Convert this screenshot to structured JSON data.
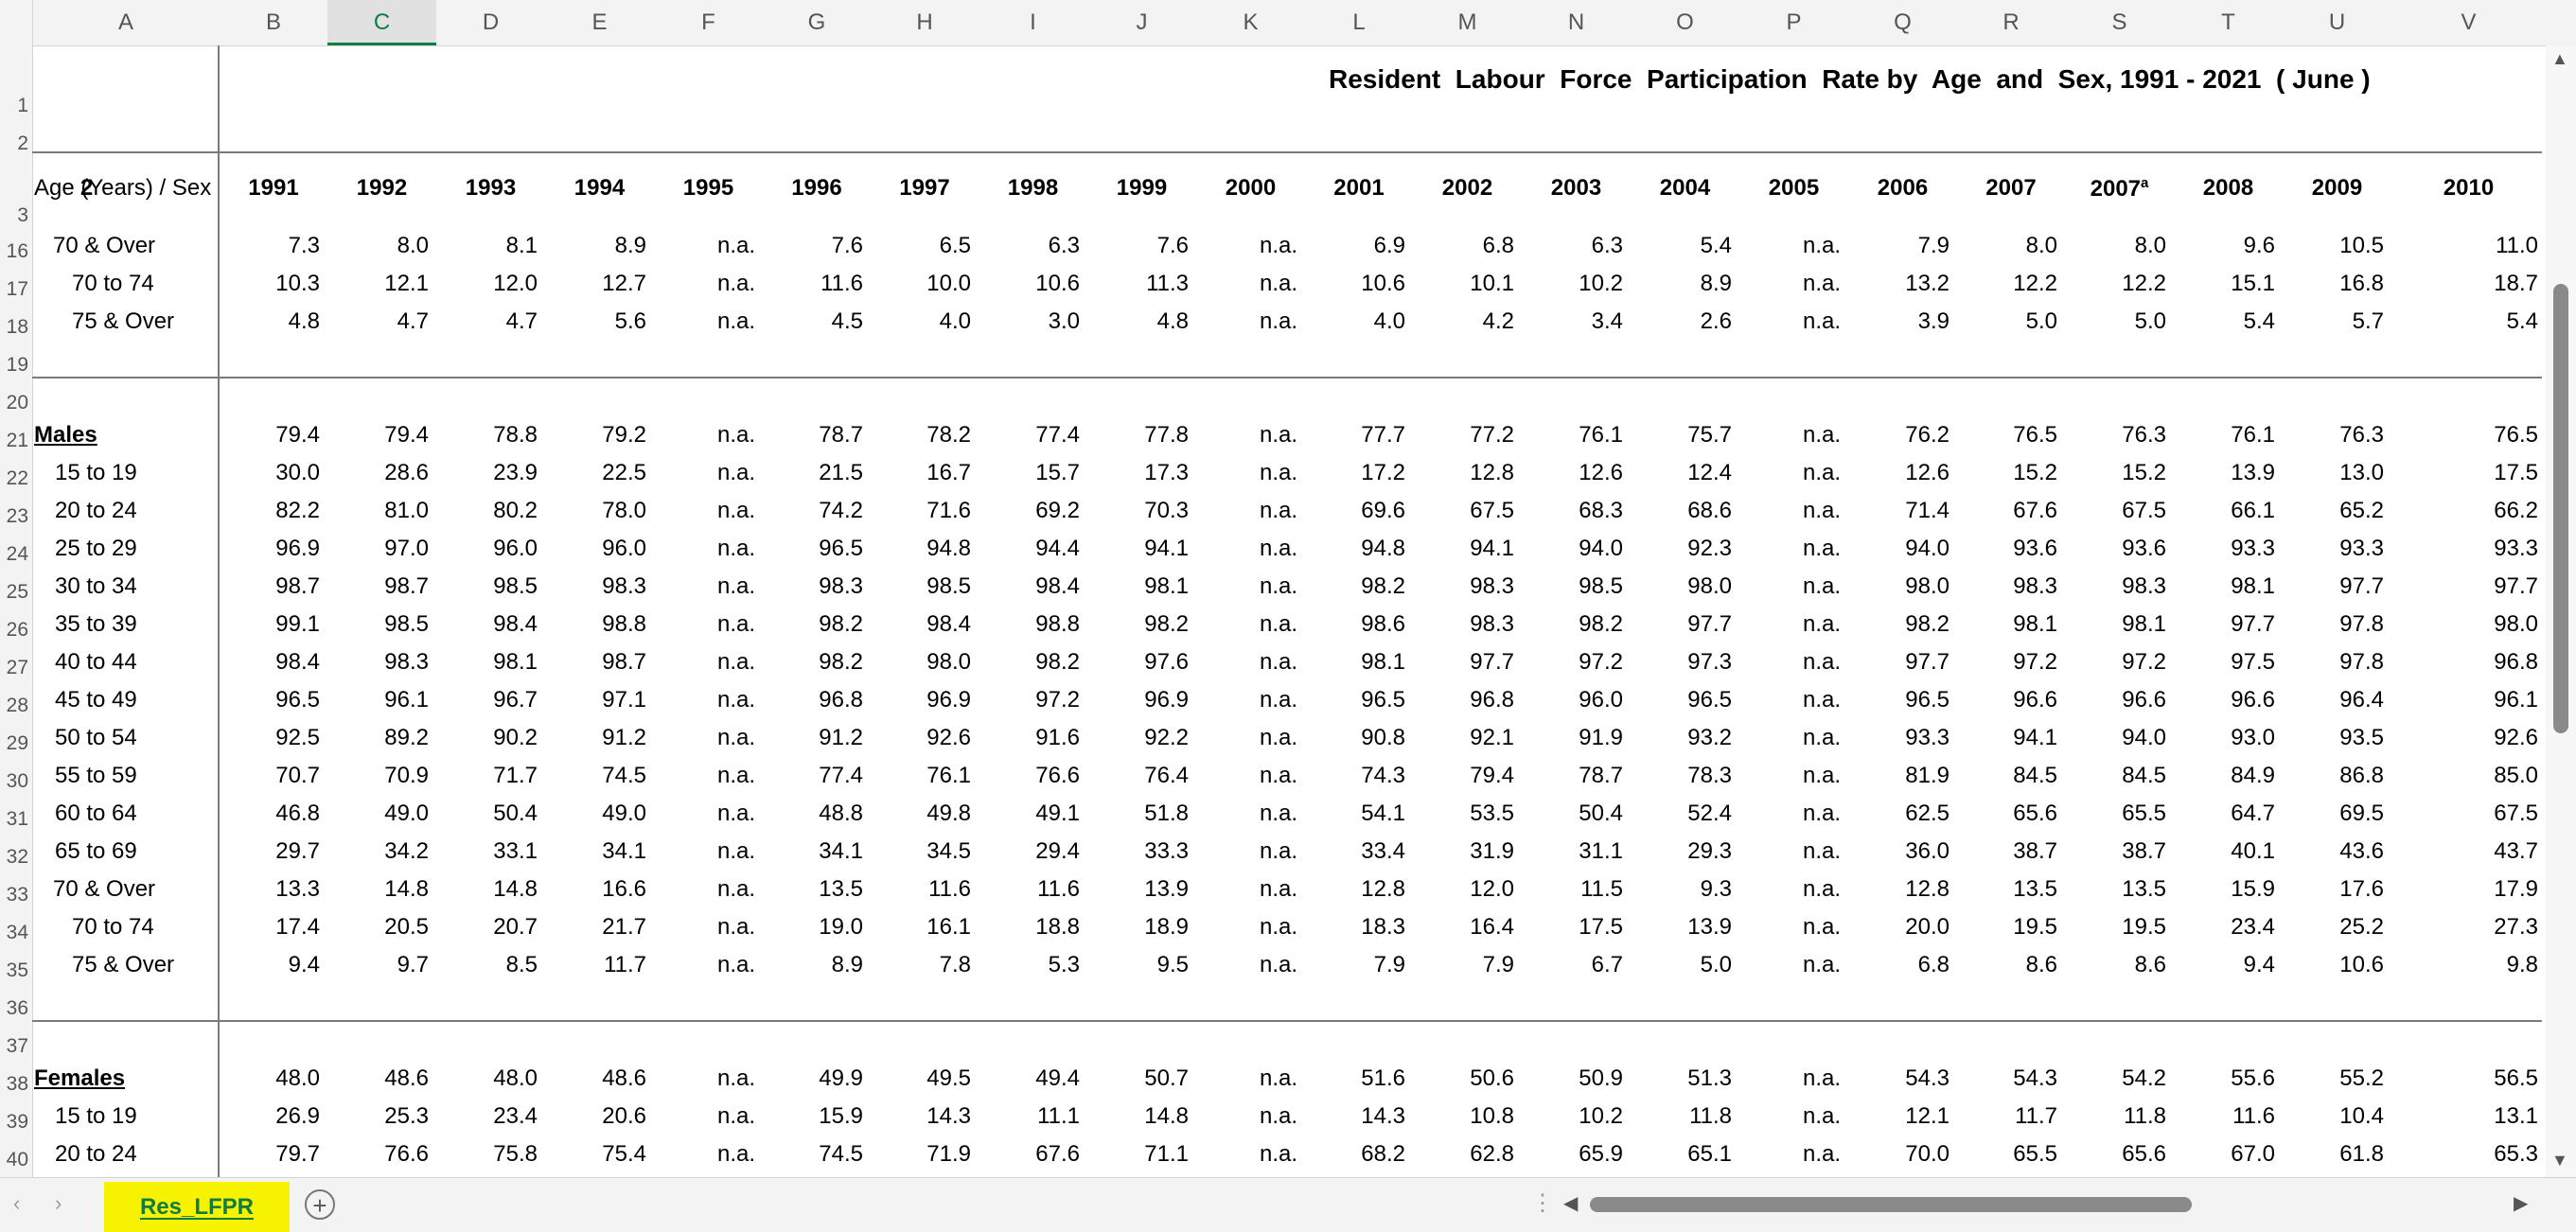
{
  "sheet": {
    "title": "Resident  Labour  Force  Participation  Rate by  Age  and  Sex, 1991 - 2021  ( June )",
    "header_label": "Age (Years) / Sex",
    "column_letters": [
      "A",
      "B",
      "C",
      "D",
      "E",
      "F",
      "G",
      "H",
      "I",
      "J",
      "K",
      "L",
      "M",
      "N",
      "O",
      "P",
      "Q",
      "R",
      "S",
      "T",
      "U",
      "V"
    ],
    "selected_column": "C",
    "years": [
      "1991",
      "1992",
      "1993",
      "1994",
      "1995",
      "1996",
      "1997",
      "1998",
      "1999",
      "2000",
      "2001",
      "2002",
      "2003",
      "2004",
      "2005",
      "2006",
      "2007",
      "2007",
      "2008",
      "2009",
      "2010",
      "2"
    ],
    "year_superscript": {
      "index": 17,
      "text": "a"
    },
    "row_numbers": [
      "1",
      "2",
      "3",
      "16",
      "17",
      "18",
      "19",
      "20",
      "21",
      "22",
      "23",
      "24",
      "25",
      "26",
      "27",
      "28",
      "29",
      "30",
      "31",
      "32",
      "33",
      "34",
      "35",
      "36",
      "37",
      "38",
      "39",
      "40"
    ],
    "rows": [
      {
        "row": "16",
        "label": "70 & Over",
        "values": [
          "7.3",
          "8.0",
          "8.1",
          "8.9",
          "n.a.",
          "7.6",
          "6.5",
          "6.3",
          "7.6",
          "n.a.",
          "6.9",
          "6.8",
          "6.3",
          "5.4",
          "n.a.",
          "7.9",
          "8.0",
          "8.0",
          "9.6",
          "10.5",
          "11.0"
        ]
      },
      {
        "row": "17",
        "label": "70 to 74",
        "values": [
          "10.3",
          "12.1",
          "12.0",
          "12.7",
          "n.a.",
          "11.6",
          "10.0",
          "10.6",
          "11.3",
          "n.a.",
          "10.6",
          "10.1",
          "10.2",
          "8.9",
          "n.a.",
          "13.2",
          "12.2",
          "12.2",
          "15.1",
          "16.8",
          "18.7"
        ]
      },
      {
        "row": "18",
        "label": "75 & Over",
        "values": [
          "4.8",
          "4.7",
          "4.7",
          "5.6",
          "n.a.",
          "4.5",
          "4.0",
          "3.0",
          "4.8",
          "n.a.",
          "4.0",
          "4.2",
          "3.4",
          "2.6",
          "n.a.",
          "3.9",
          "5.0",
          "5.0",
          "5.4",
          "5.7",
          "5.4"
        ]
      },
      {
        "row": "21",
        "label": "Males",
        "values": [
          "79.4",
          "79.4",
          "78.8",
          "79.2",
          "n.a.",
          "78.7",
          "78.2",
          "77.4",
          "77.8",
          "n.a.",
          "77.7",
          "77.2",
          "76.1",
          "75.7",
          "n.a.",
          "76.2",
          "76.5",
          "76.3",
          "76.1",
          "76.3",
          "76.5"
        ]
      },
      {
        "row": "22",
        "label": "15 to 19",
        "values": [
          "30.0",
          "28.6",
          "23.9",
          "22.5",
          "n.a.",
          "21.5",
          "16.7",
          "15.7",
          "17.3",
          "n.a.",
          "17.2",
          "12.8",
          "12.6",
          "12.4",
          "n.a.",
          "12.6",
          "15.2",
          "15.2",
          "13.9",
          "13.0",
          "17.5"
        ]
      },
      {
        "row": "23",
        "label": "20 to 24",
        "values": [
          "82.2",
          "81.0",
          "80.2",
          "78.0",
          "n.a.",
          "74.2",
          "71.6",
          "69.2",
          "70.3",
          "n.a.",
          "69.6",
          "67.5",
          "68.3",
          "68.6",
          "n.a.",
          "71.4",
          "67.6",
          "67.5",
          "66.1",
          "65.2",
          "66.2"
        ]
      },
      {
        "row": "24",
        "label": "25 to 29",
        "values": [
          "96.9",
          "97.0",
          "96.0",
          "96.0",
          "n.a.",
          "96.5",
          "94.8",
          "94.4",
          "94.1",
          "n.a.",
          "94.8",
          "94.1",
          "94.0",
          "92.3",
          "n.a.",
          "94.0",
          "93.6",
          "93.6",
          "93.3",
          "93.3",
          "93.3"
        ]
      },
      {
        "row": "25",
        "label": "30 to 34",
        "values": [
          "98.7",
          "98.7",
          "98.5",
          "98.3",
          "n.a.",
          "98.3",
          "98.5",
          "98.4",
          "98.1",
          "n.a.",
          "98.2",
          "98.3",
          "98.5",
          "98.0",
          "n.a.",
          "98.0",
          "98.3",
          "98.3",
          "98.1",
          "97.7",
          "97.7"
        ]
      },
      {
        "row": "26",
        "label": "35 to 39",
        "values": [
          "99.1",
          "98.5",
          "98.4",
          "98.8",
          "n.a.",
          "98.2",
          "98.4",
          "98.8",
          "98.2",
          "n.a.",
          "98.6",
          "98.3",
          "98.2",
          "97.7",
          "n.a.",
          "98.2",
          "98.1",
          "98.1",
          "97.7",
          "97.8",
          "98.0"
        ]
      },
      {
        "row": "27",
        "label": "40 to 44",
        "values": [
          "98.4",
          "98.3",
          "98.1",
          "98.7",
          "n.a.",
          "98.2",
          "98.0",
          "98.2",
          "97.6",
          "n.a.",
          "98.1",
          "97.7",
          "97.2",
          "97.3",
          "n.a.",
          "97.7",
          "97.2",
          "97.2",
          "97.5",
          "97.8",
          "96.8"
        ]
      },
      {
        "row": "28",
        "label": "45 to 49",
        "values": [
          "96.5",
          "96.1",
          "96.7",
          "97.1",
          "n.a.",
          "96.8",
          "96.9",
          "97.2",
          "96.9",
          "n.a.",
          "96.5",
          "96.8",
          "96.0",
          "96.5",
          "n.a.",
          "96.5",
          "96.6",
          "96.6",
          "96.6",
          "96.4",
          "96.1"
        ]
      },
      {
        "row": "29",
        "label": "50 to 54",
        "values": [
          "92.5",
          "89.2",
          "90.2",
          "91.2",
          "n.a.",
          "91.2",
          "92.6",
          "91.6",
          "92.2",
          "n.a.",
          "90.8",
          "92.1",
          "91.9",
          "93.2",
          "n.a.",
          "93.3",
          "94.1",
          "94.0",
          "93.0",
          "93.5",
          "92.6"
        ]
      },
      {
        "row": "30",
        "label": "55 to 59",
        "values": [
          "70.7",
          "70.9",
          "71.7",
          "74.5",
          "n.a.",
          "77.4",
          "76.1",
          "76.6",
          "76.4",
          "n.a.",
          "74.3",
          "79.4",
          "78.7",
          "78.3",
          "n.a.",
          "81.9",
          "84.5",
          "84.5",
          "84.9",
          "86.8",
          "85.0"
        ]
      },
      {
        "row": "31",
        "label": "60 to 64",
        "values": [
          "46.8",
          "49.0",
          "50.4",
          "49.0",
          "n.a.",
          "48.8",
          "49.8",
          "49.1",
          "51.8",
          "n.a.",
          "54.1",
          "53.5",
          "50.4",
          "52.4",
          "n.a.",
          "62.5",
          "65.6",
          "65.5",
          "64.7",
          "69.5",
          "67.5"
        ]
      },
      {
        "row": "32",
        "label": "65 to 69",
        "values": [
          "29.7",
          "34.2",
          "33.1",
          "34.1",
          "n.a.",
          "34.1",
          "34.5",
          "29.4",
          "33.3",
          "n.a.",
          "33.4",
          "31.9",
          "31.1",
          "29.3",
          "n.a.",
          "36.0",
          "38.7",
          "38.7",
          "40.1",
          "43.6",
          "43.7"
        ]
      },
      {
        "row": "33",
        "label": "70 & Over",
        "values": [
          "13.3",
          "14.8",
          "14.8",
          "16.6",
          "n.a.",
          "13.5",
          "11.6",
          "11.6",
          "13.9",
          "n.a.",
          "12.8",
          "12.0",
          "11.5",
          "9.3",
          "n.a.",
          "12.8",
          "13.5",
          "13.5",
          "15.9",
          "17.6",
          "17.9"
        ]
      },
      {
        "row": "34",
        "label": "70 to 74",
        "values": [
          "17.4",
          "20.5",
          "20.7",
          "21.7",
          "n.a.",
          "19.0",
          "16.1",
          "18.8",
          "18.9",
          "n.a.",
          "18.3",
          "16.4",
          "17.5",
          "13.9",
          "n.a.",
          "20.0",
          "19.5",
          "19.5",
          "23.4",
          "25.2",
          "27.3"
        ]
      },
      {
        "row": "35",
        "label": "75 & Over",
        "values": [
          "9.4",
          "9.7",
          "8.5",
          "11.7",
          "n.a.",
          "8.9",
          "7.8",
          "5.3",
          "9.5",
          "n.a.",
          "7.9",
          "7.9",
          "6.7",
          "5.0",
          "n.a.",
          "6.8",
          "8.6",
          "8.6",
          "9.4",
          "10.6",
          "9.8"
        ]
      },
      {
        "row": "38",
        "label": "Females",
        "values": [
          "48.0",
          "48.6",
          "48.0",
          "48.6",
          "n.a.",
          "49.9",
          "49.5",
          "49.4",
          "50.7",
          "n.a.",
          "51.6",
          "50.6",
          "50.9",
          "51.3",
          "n.a.",
          "54.3",
          "54.3",
          "54.2",
          "55.6",
          "55.2",
          "56.5"
        ]
      },
      {
        "row": "39",
        "label": "15 to 19",
        "values": [
          "26.9",
          "25.3",
          "23.4",
          "20.6",
          "n.a.",
          "15.9",
          "14.3",
          "11.1",
          "14.8",
          "n.a.",
          "14.3",
          "10.8",
          "10.2",
          "11.8",
          "n.a.",
          "12.1",
          "11.7",
          "11.8",
          "11.6",
          "10.4",
          "13.1"
        ]
      },
      {
        "row": "40",
        "label": "20 to 24",
        "values": [
          "79.7",
          "76.6",
          "75.8",
          "75.4",
          "n.a.",
          "74.5",
          "71.9",
          "67.6",
          "71.1",
          "n.a.",
          "68.2",
          "62.8",
          "65.9",
          "65.1",
          "n.a.",
          "70.0",
          "65.5",
          "65.6",
          "67.0",
          "61.8",
          "65.3"
        ]
      }
    ]
  },
  "tabs": {
    "active": "Res_LFPR",
    "add_symbol": "+",
    "prev_symbol": "‹",
    "next_symbol": "›",
    "dots": "⋮"
  },
  "colors": {
    "accent": "#107c41",
    "tab_highlight": "#f7f300"
  }
}
